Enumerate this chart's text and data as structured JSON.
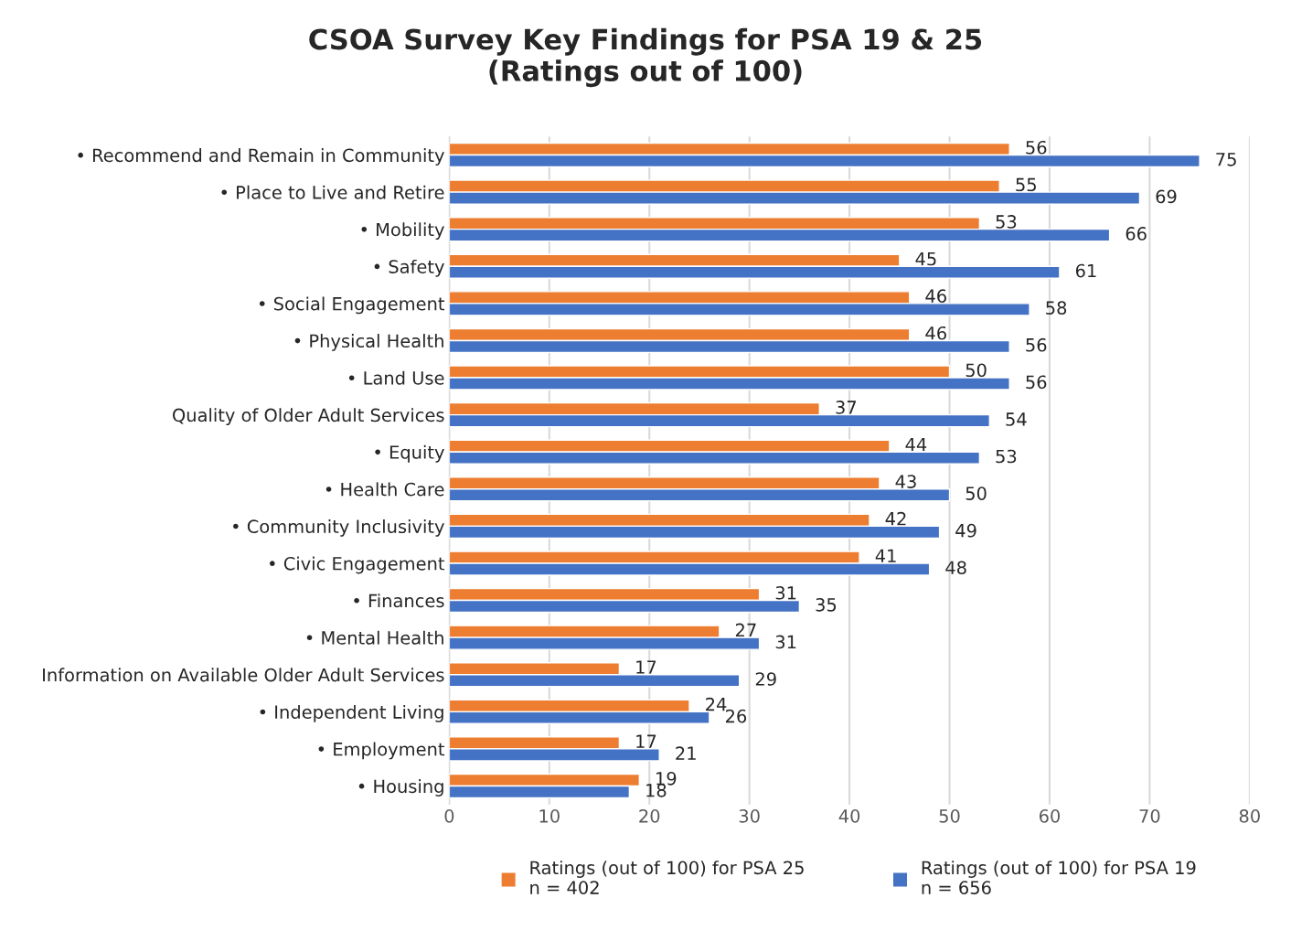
{
  "chart_data": {
    "type": "bar",
    "orientation": "horizontal",
    "title": "CSOA Survey Key Findings for PSA 19 & 25\n(Ratings out of 100)",
    "categories": [
      "• Recommend and Remain in Community",
      "• Place to Live and Retire",
      "• Mobility",
      "• Safety",
      "• Social Engagement",
      "• Physical Health",
      "• Land Use",
      "Quality of Older Adult Services",
      "• Equity",
      "• Health Care",
      "• Community Inclusivity",
      "• Civic Engagement",
      "• Finances",
      "• Mental Health",
      "Information on Available Older Adult Services",
      "• Independent Living",
      "• Employment",
      "• Housing"
    ],
    "series": [
      {
        "name": "Ratings (out of 100) for PSA 25\nn = 402",
        "color": "#ed7d31",
        "values": [
          56,
          55,
          53,
          45,
          46,
          46,
          50,
          37,
          44,
          43,
          42,
          41,
          31,
          27,
          17,
          24,
          17,
          19
        ]
      },
      {
        "name": "Ratings (out of 100) for PSA 19\nn = 656",
        "color": "#4472c4",
        "values": [
          75,
          69,
          66,
          61,
          58,
          56,
          56,
          54,
          53,
          50,
          49,
          48,
          35,
          31,
          29,
          26,
          21,
          18
        ]
      }
    ],
    "xlim": [
      0,
      80
    ],
    "xticks": [
      0,
      10,
      20,
      30,
      40,
      50,
      60,
      70,
      80
    ],
    "grid": "x",
    "legend": "bottom",
    "data_labels": true
  }
}
